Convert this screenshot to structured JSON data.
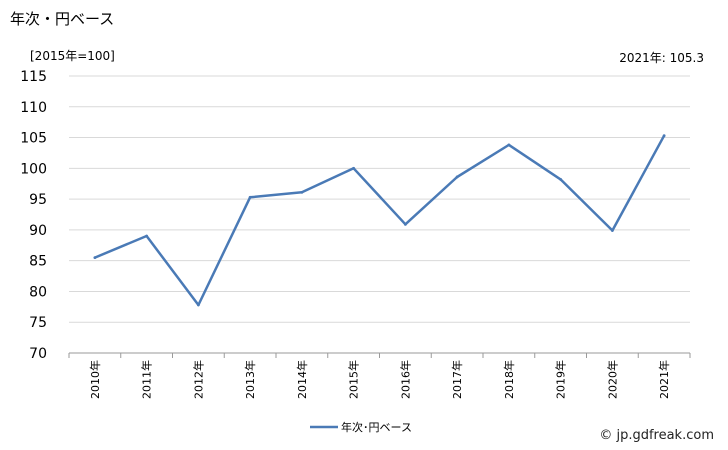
{
  "title": "年次・円ベース",
  "unit_label": "[2015年=100]",
  "latest_label": "2021年: 105.3",
  "credit": "© jp.gdfreak.com",
  "chart_data": {
    "type": "line",
    "categories": [
      "2010年",
      "2011年",
      "2012年",
      "2013年",
      "2014年",
      "2015年",
      "2016年",
      "2017年",
      "2018年",
      "2019年",
      "2020年",
      "2021年"
    ],
    "series": [
      {
        "name": "年次･円ベース",
        "values": [
          85.5,
          89.0,
          77.8,
          95.3,
          96.1,
          100.0,
          90.9,
          98.6,
          103.8,
          98.2,
          89.9,
          105.3
        ],
        "color": "#4a7ab6"
      }
    ],
    "ylim": [
      70,
      115
    ],
    "yticks": [
      70,
      75,
      80,
      85,
      90,
      95,
      100,
      105,
      110,
      115
    ],
    "grid": true,
    "legend_position": "bottom"
  }
}
